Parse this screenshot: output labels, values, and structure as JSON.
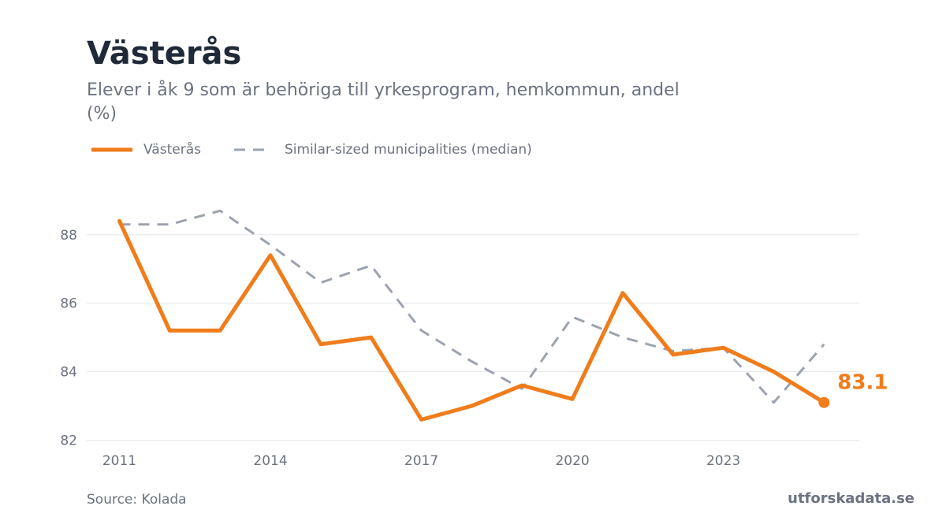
{
  "header": {
    "title": "Västerås",
    "subtitle": "Elever i åk 9 som är behöriga till yrkesprogram, hemkommun, andel (%)"
  },
  "legend": {
    "primary": "Västerås",
    "secondary": "Similar-sized municipalities (median)"
  },
  "footer": {
    "source": "Source: Kolada",
    "brand": "utforskadata.se"
  },
  "colors": {
    "primary": "#f07c1a",
    "secondary": "#9ca3af",
    "grid": "#e5e7eb",
    "axis_text": "#6b7280"
  },
  "chart_data": {
    "type": "line",
    "x": [
      2011,
      2012,
      2013,
      2014,
      2015,
      2016,
      2017,
      2018,
      2019,
      2020,
      2021,
      2022,
      2023,
      2024,
      2025
    ],
    "series": [
      {
        "name": "Västerås",
        "style": "solid",
        "values": [
          88.4,
          85.2,
          85.2,
          87.4,
          84.8,
          85.0,
          82.6,
          83.0,
          83.6,
          83.2,
          86.3,
          84.5,
          84.7,
          84.0,
          83.1
        ]
      },
      {
        "name": "Similar-sized municipalities (median)",
        "style": "dashed",
        "values": [
          88.3,
          88.3,
          88.7,
          87.7,
          86.6,
          87.1,
          85.2,
          84.3,
          83.5,
          85.6,
          85.0,
          84.6,
          84.7,
          83.1,
          84.8
        ]
      }
    ],
    "end_label": "83.1",
    "yticks": [
      82,
      84,
      86,
      88
    ],
    "xticks": [
      2011,
      2014,
      2017,
      2020,
      2023
    ],
    "ylim": [
      81.85,
      89.1
    ],
    "xlim": [
      2010.35,
      2025.7
    ],
    "grid": "horizontal"
  }
}
